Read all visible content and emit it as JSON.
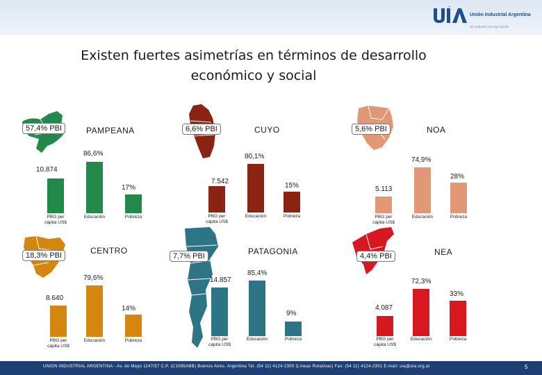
{
  "header": {
    "org_name": "Unión Industrial Argentina",
    "tagline": "Sin Industria No Hay Nación",
    "brand_color": "#1f4e8c"
  },
  "title_line1": "Existen fuertes asimetrías en términos de desarrollo",
  "title_line2": "económico y social",
  "chart_data": [
    {
      "type": "bar",
      "region": "PAMPEANA",
      "pbi_share": "57,4% PBI",
      "color": "#22894a",
      "categories": [
        "PBG per cápita US$",
        "Educación",
        "Pobreza"
      ],
      "values": [
        10874,
        86.6,
        17
      ],
      "labels": [
        "10.874",
        "86,6%",
        "17%"
      ]
    },
    {
      "type": "bar",
      "region": "CUYO",
      "pbi_share": "6,6% PBI",
      "color": "#8b2312",
      "categories": [
        "PBG per cápita US$",
        "Educación",
        "Pobreza"
      ],
      "values": [
        7542,
        80.1,
        15
      ],
      "labels": [
        "7.542",
        "80,1%",
        "15%"
      ]
    },
    {
      "type": "bar",
      "region": "NOA",
      "pbi_share": "5,6% PBI",
      "color": "#e29777",
      "categories": [
        "PBG per cápita US$",
        "Educación",
        "Pobreza"
      ],
      "values": [
        5113,
        74.9,
        28
      ],
      "labels": [
        "5.113",
        "74,9%",
        "28%"
      ]
    },
    {
      "type": "bar",
      "region": "CENTRO",
      "pbi_share": "18,3% PBI",
      "color": "#d4860f",
      "categories": [
        "PBG per cápita US$",
        "Educación",
        "Pobreza"
      ],
      "values": [
        8640,
        79.6,
        14
      ],
      "labels": [
        "8.640",
        "79,6%",
        "14%"
      ]
    },
    {
      "type": "bar",
      "region": "PATAGONIA",
      "pbi_share": "7,7% PBI",
      "color": "#2e7487",
      "categories": [
        "PBG per cápita US$",
        "Educación",
        "Pobreza"
      ],
      "values": [
        14857,
        85.4,
        9
      ],
      "labels": [
        "14.857",
        "85,4%",
        "9%"
      ]
    },
    {
      "type": "bar",
      "region": "NEA",
      "pbi_share": "4,4% PBI",
      "color": "#d81820",
      "categories": [
        "PBG per cápita US$",
        "Educación",
        "Pobreza"
      ],
      "values": [
        4087,
        72.3,
        33
      ],
      "labels": [
        "4.087",
        "72,3%",
        "33%"
      ]
    }
  ],
  "footer": {
    "text": "UNION INDUSTRIAL ARGENTINA - Av. de Mayo 1147/57 C.P. (C1085ABB) Buenos Aires. Argentina Tel. (54 11) 4124-2300 (Líneas Rotativas) Fax: (54 11) 4124-2301   E-mail: uia@uia.org.ar",
    "page": "5"
  }
}
